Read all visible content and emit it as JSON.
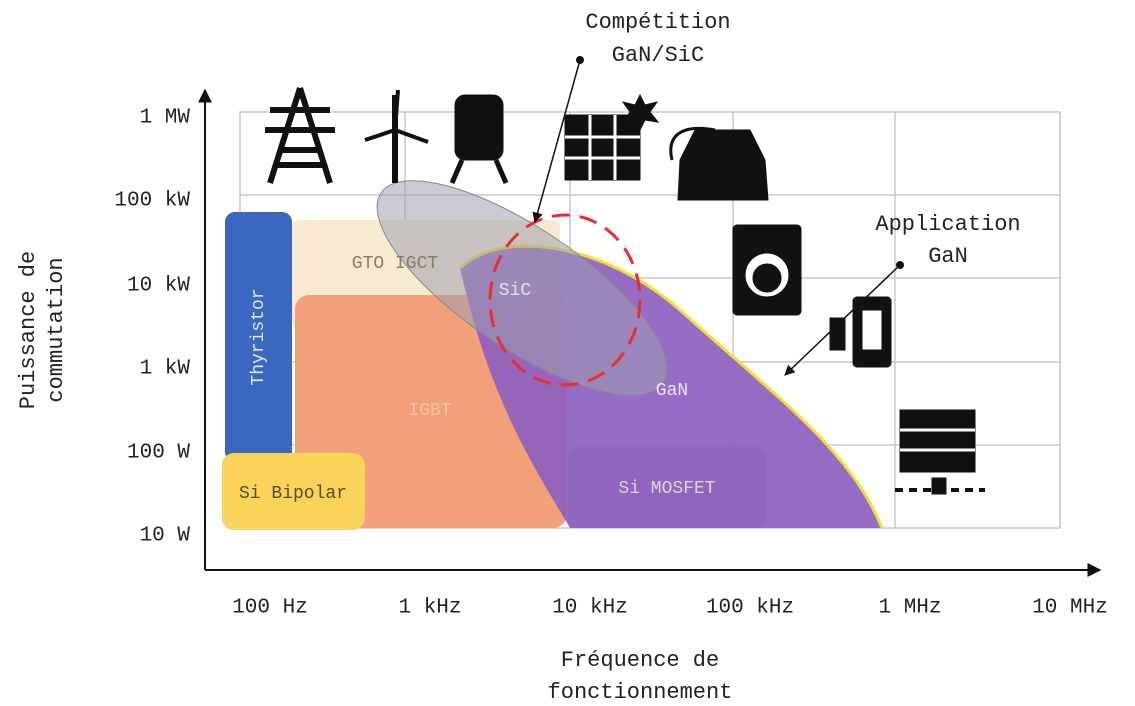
{
  "annotation_competition": [
    "Compétition",
    "GaN/SiC"
  ],
  "annotation_application": [
    "Application",
    "GaN"
  ],
  "y_axis": {
    "title": [
      "Puissance de",
      "commutation"
    ],
    "ticks": [
      "1 MW",
      "100 kW",
      "10 kW",
      "1 kW",
      "100 W",
      "10 W"
    ]
  },
  "x_axis": {
    "title": [
      "Fréquence de",
      "fonctionnement"
    ],
    "ticks": [
      "100 Hz",
      "1 kHz",
      "10 kHz",
      "100 kHz",
      "1 MHz",
      "10 MHz"
    ]
  },
  "regions": [
    "Thyristor",
    "GTO IGCT",
    "IGBT",
    "Si Bipolar",
    "Si MOSFET",
    "SiC",
    "GaN"
  ]
}
